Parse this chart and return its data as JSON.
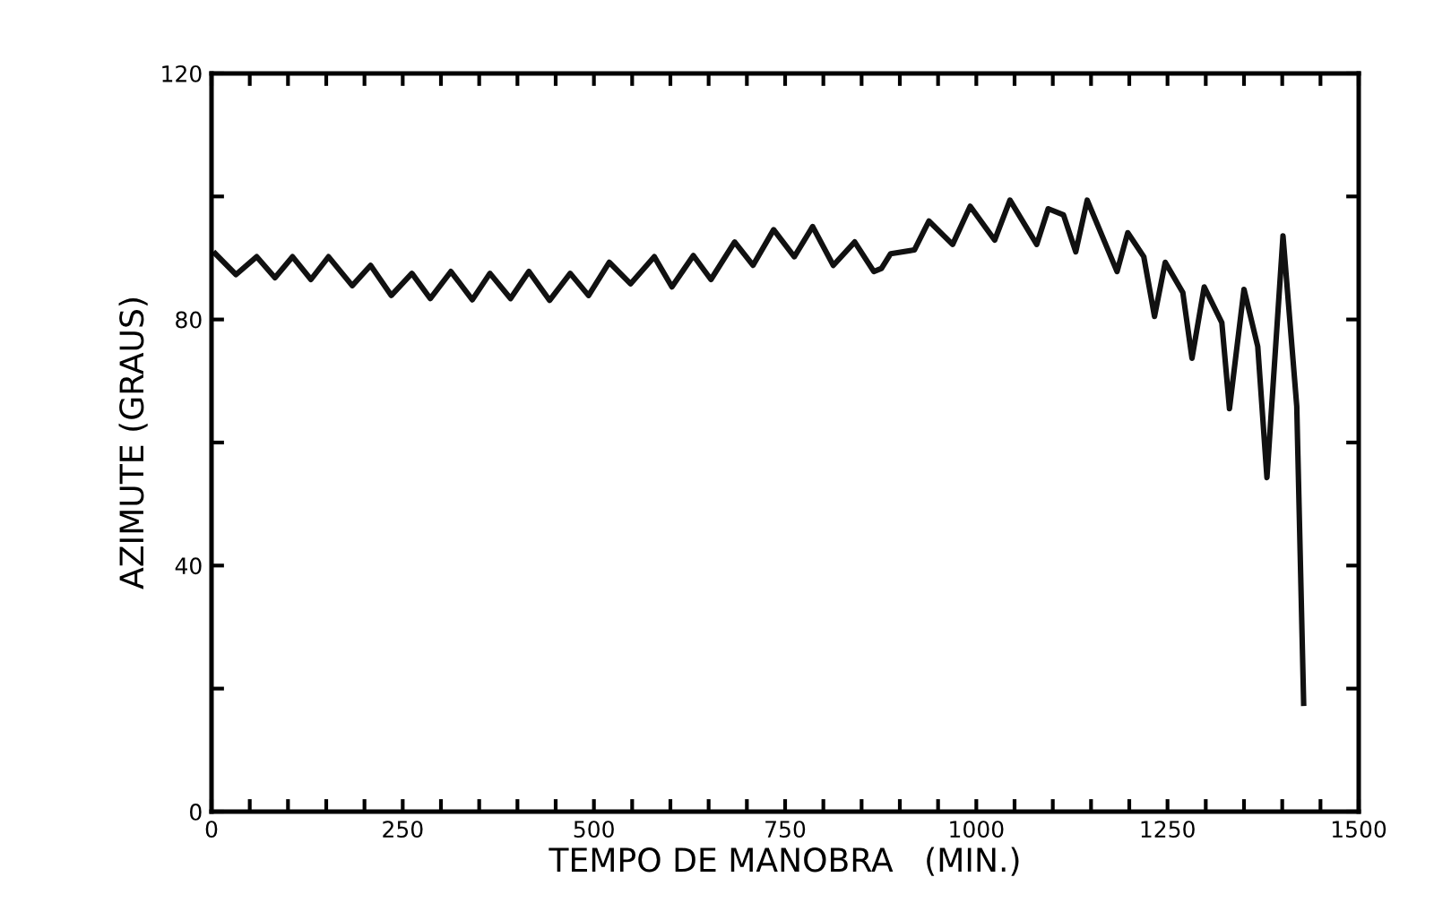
{
  "chart_data": {
    "type": "line",
    "xlabel": "TEMPO DE MANOBRA   (MIN.)",
    "ylabel": "AZIMUTE (GRAUS)",
    "x": [
      5,
      32,
      59,
      83,
      106,
      130,
      153,
      184,
      208,
      235,
      262,
      286,
      313,
      341,
      364,
      391,
      415,
      442,
      469,
      493,
      520,
      548,
      579,
      602,
      630,
      653,
      684,
      708,
      735,
      762,
      786,
      813,
      841,
      866,
      876,
      888,
      919,
      938,
      969,
      992,
      1024,
      1044,
      1079,
      1094,
      1114,
      1130,
      1145,
      1184,
      1198,
      1219,
      1233,
      1247,
      1270,
      1282,
      1298,
      1321,
      1331,
      1350,
      1368,
      1380,
      1401,
      1419,
      1428
    ],
    "series": [
      {
        "color": "#111111",
        "values": [
          90.7,
          87.3,
          90.2,
          86.8,
          90.2,
          86.5,
          90.2,
          85.5,
          88.8,
          83.9,
          87.5,
          83.4,
          87.8,
          83.2,
          87.5,
          83.4,
          87.8,
          83.1,
          87.5,
          83.9,
          89.3,
          85.8,
          90.2,
          85.3,
          90.4,
          86.5,
          92.6,
          88.8,
          94.6,
          90.2,
          95.1,
          88.8,
          92.6,
          87.8,
          88.3,
          90.7,
          91.3,
          96.0,
          92.2,
          98.4,
          92.9,
          99.4,
          92.2,
          98.0,
          97.0,
          91.0,
          99.4,
          87.8,
          94.1,
          90.2,
          80.5,
          89.3,
          84.4,
          73.7,
          85.3,
          79.5,
          65.5,
          84.9,
          75.6,
          54.3,
          93.6,
          65.9,
          17.6
        ]
      }
    ],
    "xlim": [
      0,
      1500
    ],
    "ylim": [
      0,
      120
    ],
    "xticks": [
      0,
      {
        "value": 50,
        "label": null
      },
      {
        "value": 100,
        "label": null
      },
      {
        "value": 150,
        "label": null
      },
      {
        "value": 200,
        "label": null
      },
      250,
      {
        "value": 300,
        "label": null
      },
      {
        "value": 350,
        "label": null
      },
      {
        "value": 400,
        "label": null
      },
      {
        "value": 450,
        "label": null
      },
      500,
      {
        "value": 550,
        "label": null
      },
      {
        "value": 600,
        "label": null
      },
      {
        "value": 650,
        "label": null
      },
      {
        "value": 700,
        "label": null
      },
      750,
      {
        "value": 800,
        "label": null
      },
      {
        "value": 850,
        "label": null
      },
      {
        "value": 900,
        "label": null
      },
      {
        "value": 950,
        "label": null
      },
      1000,
      {
        "value": 1050,
        "label": null
      },
      {
        "value": 1100,
        "label": null
      },
      {
        "value": 1150,
        "label": null
      },
      {
        "value": 1200,
        "label": null
      },
      1250,
      {
        "value": 1300,
        "label": null
      },
      {
        "value": 1350,
        "label": null
      },
      {
        "value": 1400,
        "label": null
      },
      {
        "value": 1450,
        "label": null
      },
      1500
    ],
    "yticks": [
      0,
      {
        "value": 20,
        "label": null
      },
      40,
      {
        "value": 60,
        "label": null
      },
      80,
      {
        "value": 100,
        "label": null
      },
      120
    ],
    "grid": false,
    "legend": false,
    "marker": "none",
    "line_style": "solid"
  }
}
